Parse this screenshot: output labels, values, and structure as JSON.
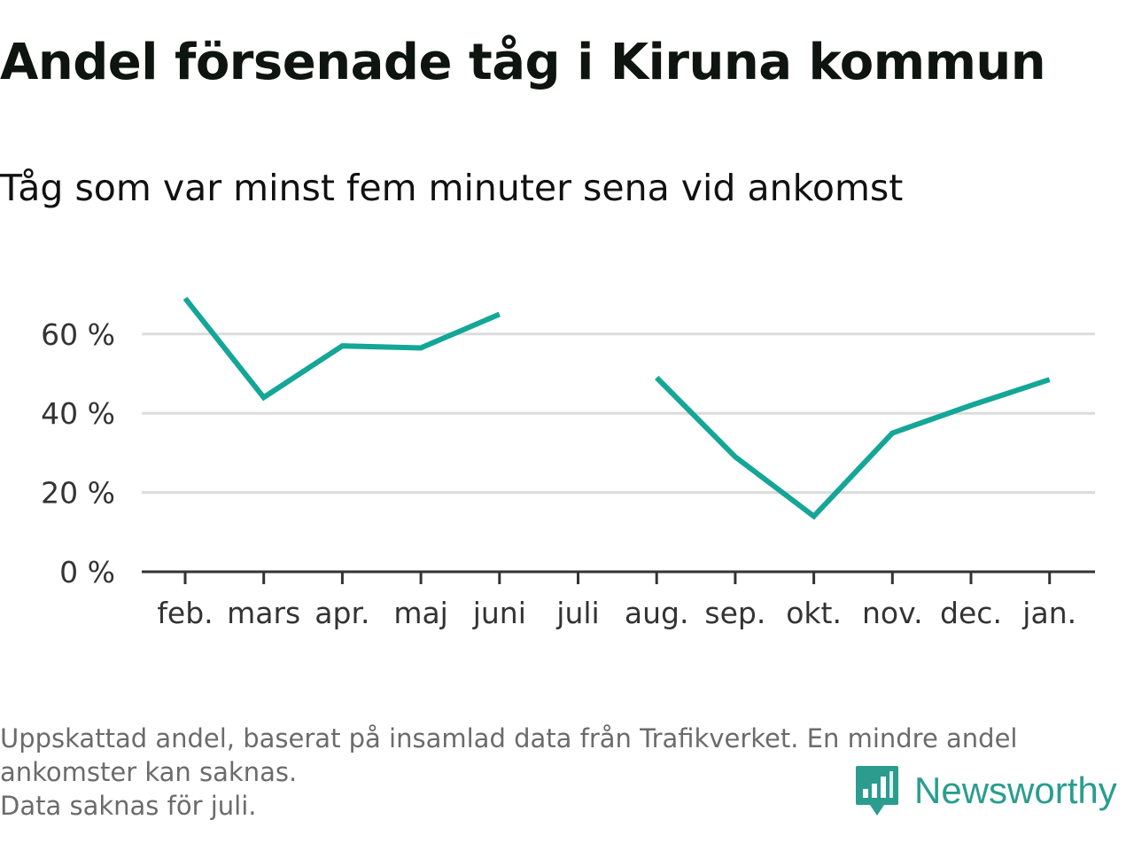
{
  "title": "Andel försenade tåg i Kiruna kommun",
  "subtitle": "Tåg som var minst fem minuter sena vid ankomst",
  "footnote": {
    "line1": "Uppskattad andel, baserat på insamlad data från Trafikverket. En mindre andel",
    "line2": "ankomster kan saknas.",
    "line3": "Data saknas för juli."
  },
  "brand": {
    "name": "Newsworthy",
    "icon": "newsworthy-logo-icon",
    "color": "#2a9d8f"
  },
  "colors": {
    "line": "#14a697",
    "grid": "#dcdcdc",
    "axis": "#333333"
  },
  "chart_data": {
    "type": "line",
    "categories": [
      "feb.",
      "mars",
      "apr.",
      "maj",
      "juni",
      "juli",
      "aug.",
      "sep.",
      "okt.",
      "nov.",
      "dec.",
      "jan."
    ],
    "series": [
      {
        "values": [
          69,
          44,
          57,
          56.5,
          65,
          null,
          49,
          29,
          14,
          35,
          42,
          48.5
        ]
      }
    ],
    "y_ticks": [
      {
        "value": 0,
        "label": "0 %"
      },
      {
        "value": 20,
        "label": "20 %"
      },
      {
        "value": 40,
        "label": "40 %"
      },
      {
        "value": 60,
        "label": "60 %"
      }
    ],
    "ylim": [
      0,
      75
    ],
    "grid": true,
    "unit": "%"
  }
}
